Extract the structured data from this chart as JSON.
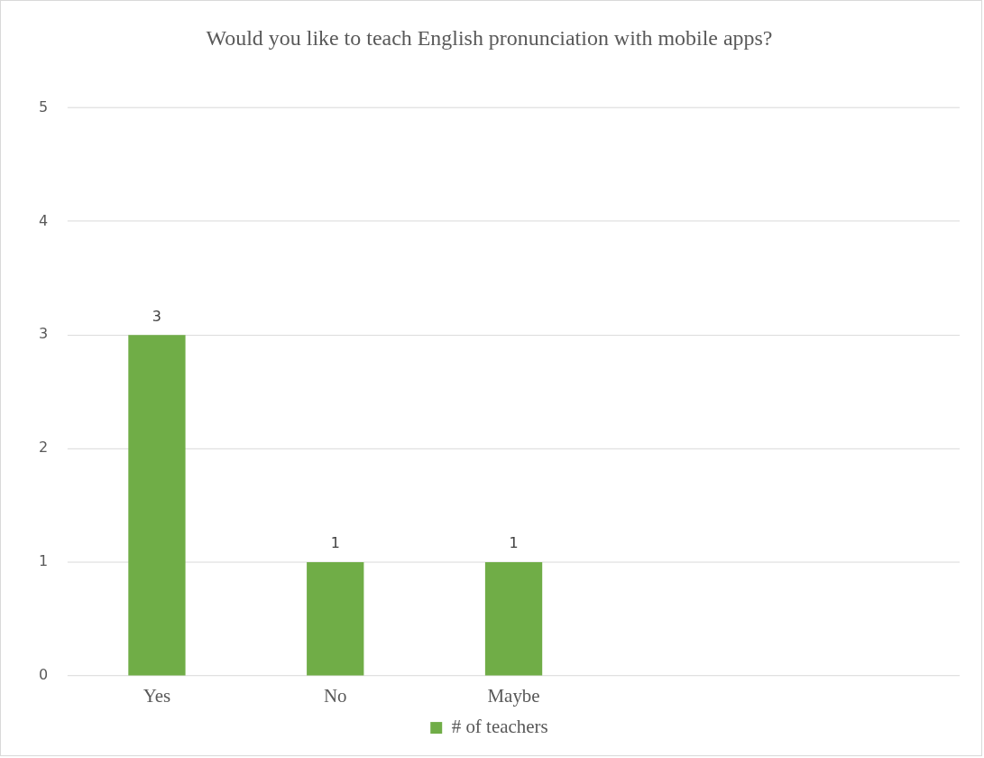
{
  "chart_data": {
    "type": "bar",
    "title": "Would you like to teach English pronunciation with mobile apps?",
    "categories": [
      "Yes",
      "No",
      "Maybe",
      null,
      null
    ],
    "series": [
      {
        "name": "# of teachers",
        "color": "#70ad47",
        "values": [
          3,
          1,
          1,
          null,
          null
        ]
      }
    ],
    "ylim": [
      0,
      5
    ],
    "yticks": [
      0,
      1,
      2,
      3,
      4,
      5
    ],
    "grid": "y",
    "legend": "bottom",
    "data_labels": true
  }
}
